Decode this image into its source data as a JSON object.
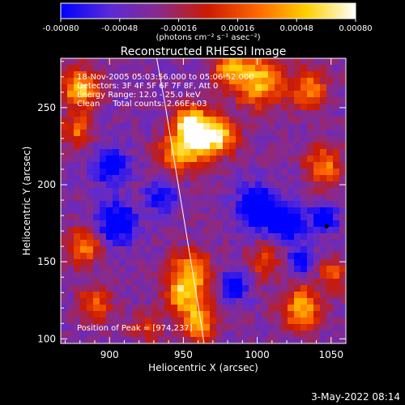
{
  "chart_data": {
    "type": "heatmap",
    "title": "Reconstructed RHESSI Image",
    "xlabel": "Heliocentric X (arcsec)",
    "ylabel": "Heliocentric Y (arcsec)",
    "xlim": [
      867,
      1060
    ],
    "ylim": [
      97,
      282
    ],
    "x_ticks": [
      "900",
      "950",
      "1000",
      "1050"
    ],
    "x_tick_values": [
      900,
      950,
      1000,
      1050
    ],
    "y_ticks": [
      "100",
      "150",
      "200",
      "250"
    ],
    "y_tick_values": [
      100,
      150,
      200,
      250
    ],
    "colorbar": {
      "min": -0.0008,
      "max": 0.0008,
      "tick_labels": [
        "-0.00080",
        "-0.00048",
        "-0.00016",
        "0.00016",
        "0.00048",
        "0.00080"
      ],
      "tick_values": [
        -0.0008,
        -0.00048,
        -0.00016,
        0.00016,
        0.00048,
        0.0008
      ],
      "label": "(photons cm⁻² s⁻¹ asec⁻²)",
      "colors": [
        "#0000ff",
        "#5a2ad6",
        "#8a2a8a",
        "#cc1a00",
        "#ff6600",
        "#ffd000",
        "#ffffff"
      ]
    },
    "annotations": [
      "18-Nov-2005 05:03:56.000 to 05:06:52.000",
      "Detectors: 3F 4F 5F 6F 7F 8F, Att 0",
      "Energy Range: 12.0 - 25.0 keV",
      "Clean     Total counts: 2.66E+03"
    ],
    "peak_text": "Position of Peak = [974,237]",
    "peak": [
      974,
      237
    ],
    "emission_blobs": [
      {
        "x": 955,
        "y": 240,
        "sigma": 8,
        "amp": 1.0
      },
      {
        "x": 962,
        "y": 228,
        "sigma": 10,
        "amp": 0.8
      },
      {
        "x": 945,
        "y": 220,
        "sigma": 9,
        "amp": 0.7
      },
      {
        "x": 975,
        "y": 232,
        "sigma": 8,
        "amp": 0.75
      },
      {
        "x": 955,
        "y": 142,
        "sigma": 10,
        "amp": 0.9
      },
      {
        "x": 960,
        "y": 112,
        "sigma": 9,
        "amp": 0.85
      },
      {
        "x": 948,
        "y": 128,
        "sigma": 7,
        "amp": 0.6
      },
      {
        "x": 880,
        "y": 262,
        "sigma": 9,
        "amp": 0.9
      },
      {
        "x": 878,
        "y": 235,
        "sigma": 7,
        "amp": 0.6
      },
      {
        "x": 883,
        "y": 160,
        "sigma": 8,
        "amp": 0.75
      },
      {
        "x": 890,
        "y": 122,
        "sigma": 8,
        "amp": 0.6
      },
      {
        "x": 1000,
        "y": 268,
        "sigma": 12,
        "amp": 0.9
      },
      {
        "x": 1035,
        "y": 262,
        "sigma": 9,
        "amp": 0.65
      },
      {
        "x": 1045,
        "y": 212,
        "sigma": 9,
        "amp": 0.7
      },
      {
        "x": 1030,
        "y": 120,
        "sigma": 10,
        "amp": 0.8
      },
      {
        "x": 1052,
        "y": 142,
        "sigma": 7,
        "amp": 0.55
      },
      {
        "x": 1005,
        "y": 150,
        "sigma": 8,
        "amp": 0.45
      },
      {
        "x": 980,
        "y": 275,
        "sigma": 7,
        "amp": 0.7
      },
      {
        "x": 925,
        "y": 108,
        "sigma": 7,
        "amp": 0.45
      }
    ],
    "negative_blobs": [
      {
        "x": 1000,
        "y": 185,
        "sigma": 9,
        "amp": 0.9
      },
      {
        "x": 1020,
        "y": 175,
        "sigma": 8,
        "amp": 0.85
      },
      {
        "x": 1030,
        "y": 150,
        "sigma": 6,
        "amp": 0.6
      },
      {
        "x": 905,
        "y": 175,
        "sigma": 9,
        "amp": 0.75
      },
      {
        "x": 900,
        "y": 212,
        "sigma": 8,
        "amp": 0.65
      },
      {
        "x": 935,
        "y": 192,
        "sigma": 7,
        "amp": 0.55
      },
      {
        "x": 985,
        "y": 135,
        "sigma": 7,
        "amp": 0.6
      },
      {
        "x": 1045,
        "y": 178,
        "sigma": 6,
        "amp": 0.7
      }
    ],
    "limb_curve": [
      [
        932,
        282
      ],
      [
        938,
        250
      ],
      [
        944,
        215
      ],
      [
        950,
        180
      ],
      [
        956,
        145
      ],
      [
        962,
        110
      ],
      [
        964,
        97
      ]
    ]
  },
  "footer": {
    "date": "3-May-2022 08:14"
  }
}
